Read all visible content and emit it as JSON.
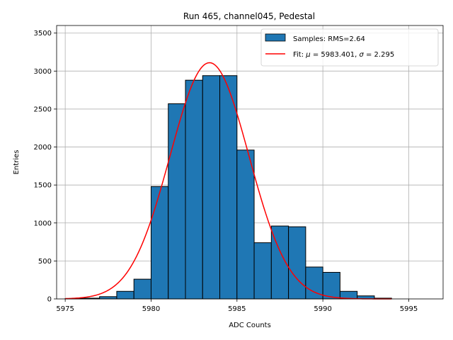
{
  "chart_data": {
    "type": "bar",
    "title": "Run 465, channel045, Pedestal",
    "xlabel": "ADC Counts",
    "ylabel": "Entries",
    "xlim": [
      5974.5,
      5997.0
    ],
    "ylim": [
      0,
      3600
    ],
    "xticks": [
      5975,
      5980,
      5985,
      5990,
      5995
    ],
    "yticks": [
      0,
      500,
      1000,
      1500,
      2000,
      2500,
      3000,
      3500
    ],
    "grid": true,
    "legend_position": "top-right",
    "bin_width": 1,
    "bin_edges_start": [
      5975,
      5976,
      5977,
      5978,
      5979,
      5980,
      5981,
      5982,
      5983,
      5984,
      5985,
      5986,
      5987,
      5988,
      5989,
      5990,
      5991,
      5992,
      5993
    ],
    "values": [
      5,
      10,
      30,
      100,
      260,
      1480,
      2570,
      2880,
      2940,
      2940,
      1960,
      740,
      960,
      950,
      420,
      350,
      100,
      40,
      10
    ],
    "series": [
      {
        "name": "Samples: RMS=2.64",
        "kind": "histogram",
        "color": "#1f77b4"
      },
      {
        "name": "Fit: μ = 5983.401, σ = 2.295",
        "kind": "line",
        "color": "#ff0000"
      }
    ],
    "fit": {
      "mu": 5983.401,
      "sigma": 2.295,
      "amplitude": 3110,
      "x_range": [
        5975,
        5994
      ]
    },
    "legend": {
      "hist_label_prefix": "Samples: RMS=2.64",
      "fit_label_prefix": "Fit: ",
      "fit_mu_symbol": "μ",
      "fit_mu_value": " = 5983.401, ",
      "fit_sigma_symbol": "σ",
      "fit_sigma_value": " = 2.295"
    }
  }
}
